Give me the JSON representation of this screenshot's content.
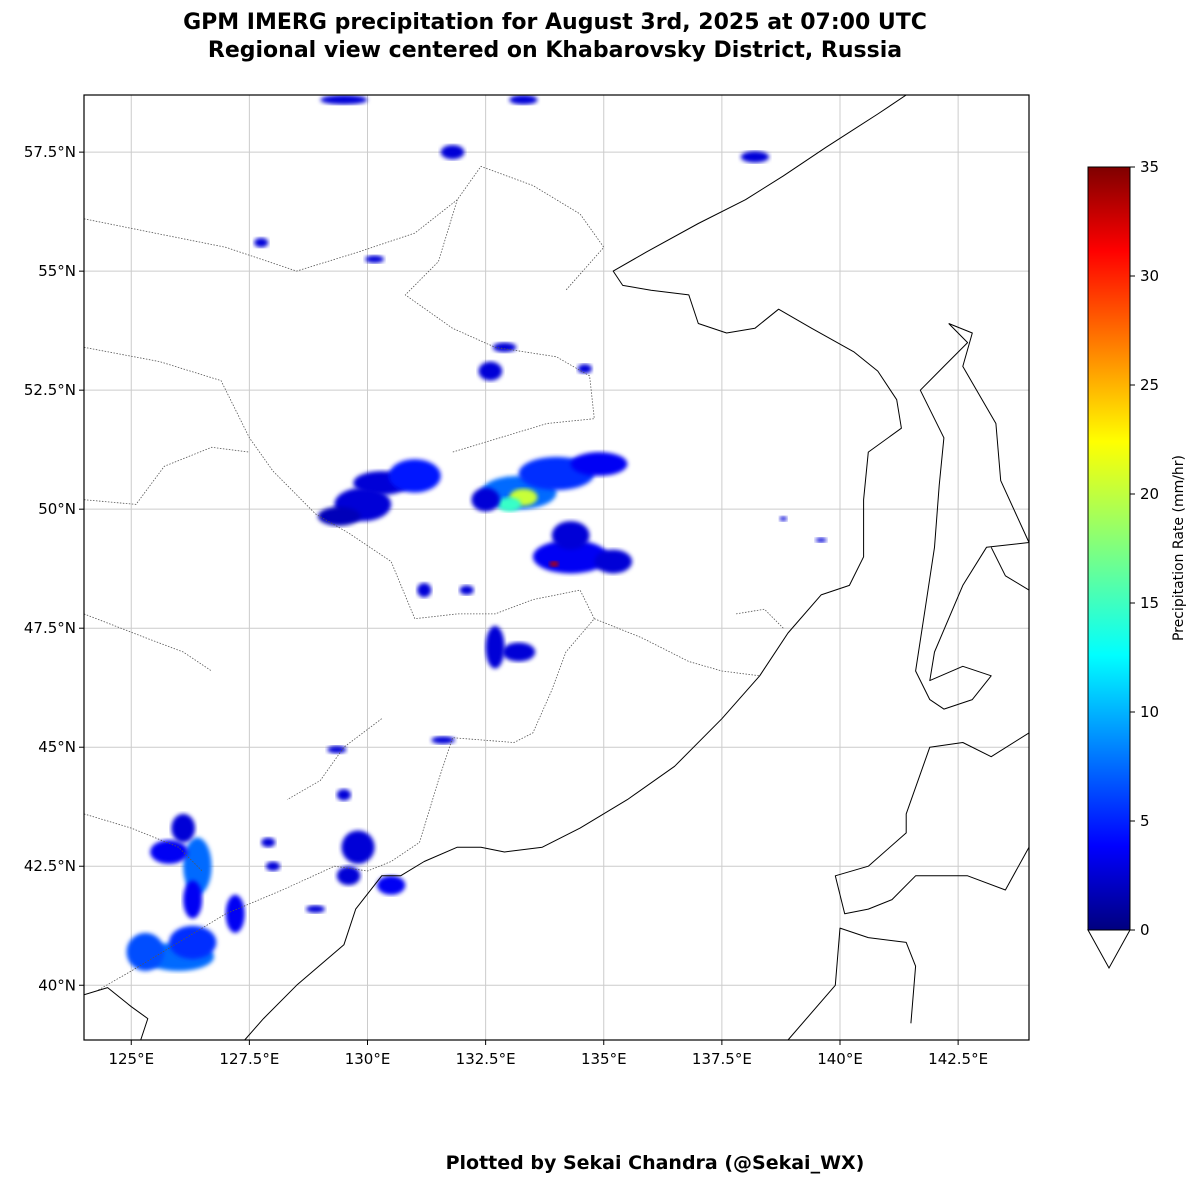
{
  "title_line1": "GPM IMERG precipitation for August 3rd, 2025 at 07:00 UTC",
  "title_line2": "Regional view centered on Khabarovsky District, Russia",
  "credit": "Plotted by Sekai Chandra (@Sekai_WX)",
  "map": {
    "lon_range": [
      124.0,
      144.0
    ],
    "lat_range": [
      38.85,
      58.7
    ],
    "lon_ticks": [
      125.0,
      127.5,
      130.0,
      132.5,
      135.0,
      137.5,
      140.0,
      142.5
    ],
    "lon_tick_labels": [
      "125°E",
      "127.5°E",
      "130°E",
      "132.5°E",
      "135°E",
      "137.5°E",
      "140°E",
      "142.5°E"
    ],
    "lat_ticks": [
      40.0,
      42.5,
      45.0,
      47.5,
      50.0,
      52.5,
      55.0,
      57.5
    ],
    "lat_tick_labels": [
      "40°N",
      "42.5°N",
      "45°N",
      "47.5°N",
      "50°N",
      "52.5°N",
      "55°N",
      "57.5°N"
    ],
    "gridlines": true,
    "colors": {
      "grid": "#cccccc",
      "coast": "#000000",
      "border": "#555555"
    }
  },
  "colorbar": {
    "label": "Precipitation Rate (mm/hr)",
    "ticks": [
      "0",
      "5",
      "10",
      "15",
      "20",
      "25",
      "30",
      "35"
    ],
    "min": 0,
    "max": 35,
    "colormap": "jet",
    "extend": "min"
  },
  "precip_cells": [
    {
      "lon": 129.9,
      "lat": 50.1,
      "rx": 0.6,
      "ry": 0.35,
      "rate": 3
    },
    {
      "lon": 130.3,
      "lat": 50.55,
      "rx": 0.6,
      "ry": 0.25,
      "rate": 3
    },
    {
      "lon": 131.0,
      "lat": 50.7,
      "rx": 0.55,
      "ry": 0.35,
      "rate": 5
    },
    {
      "lon": 129.4,
      "lat": 49.85,
      "rx": 0.45,
      "ry": 0.2,
      "rate": 2
    },
    {
      "lon": 133.2,
      "lat": 50.35,
      "rx": 0.8,
      "ry": 0.35,
      "rate": 8
    },
    {
      "lon": 134.0,
      "lat": 50.75,
      "rx": 0.8,
      "ry": 0.35,
      "rate": 6
    },
    {
      "lon": 133.3,
      "lat": 50.25,
      "rx": 0.3,
      "ry": 0.18,
      "rate": 20
    },
    {
      "lon": 133.0,
      "lat": 50.1,
      "rx": 0.25,
      "ry": 0.15,
      "rate": 15
    },
    {
      "lon": 134.9,
      "lat": 50.95,
      "rx": 0.6,
      "ry": 0.25,
      "rate": 4
    },
    {
      "lon": 132.5,
      "lat": 50.2,
      "rx": 0.3,
      "ry": 0.25,
      "rate": 3
    },
    {
      "lon": 134.3,
      "lat": 49.0,
      "rx": 0.8,
      "ry": 0.35,
      "rate": 4
    },
    {
      "lon": 134.3,
      "lat": 49.45,
      "rx": 0.4,
      "ry": 0.3,
      "rate": 3
    },
    {
      "lon": 135.2,
      "lat": 48.9,
      "rx": 0.4,
      "ry": 0.25,
      "rate": 3
    },
    {
      "lon": 133.95,
      "lat": 48.85,
      "rx": 0.1,
      "ry": 0.06,
      "rate": 33
    },
    {
      "lon": 132.7,
      "lat": 47.1,
      "rx": 0.2,
      "ry": 0.45,
      "rate": 3
    },
    {
      "lon": 133.2,
      "lat": 47.0,
      "rx": 0.35,
      "ry": 0.2,
      "rate": 3
    },
    {
      "lon": 131.2,
      "lat": 48.3,
      "rx": 0.15,
      "ry": 0.15,
      "rate": 3
    },
    {
      "lon": 132.1,
      "lat": 48.3,
      "rx": 0.15,
      "ry": 0.1,
      "rate": 3
    },
    {
      "lon": 132.9,
      "lat": 53.4,
      "rx": 0.25,
      "ry": 0.1,
      "rate": 3
    },
    {
      "lon": 132.6,
      "lat": 52.9,
      "rx": 0.25,
      "ry": 0.2,
      "rate": 3
    },
    {
      "lon": 134.6,
      "lat": 52.95,
      "rx": 0.15,
      "ry": 0.1,
      "rate": 3
    },
    {
      "lon": 129.5,
      "lat": 58.6,
      "rx": 0.5,
      "ry": 0.1,
      "rate": 3
    },
    {
      "lon": 131.8,
      "lat": 57.5,
      "rx": 0.25,
      "ry": 0.15,
      "rate": 3
    },
    {
      "lon": 133.3,
      "lat": 58.6,
      "rx": 0.3,
      "ry": 0.1,
      "rate": 3
    },
    {
      "lon": 138.2,
      "lat": 57.4,
      "rx": 0.3,
      "ry": 0.12,
      "rate": 3
    },
    {
      "lon": 127.75,
      "lat": 55.6,
      "rx": 0.15,
      "ry": 0.1,
      "rate": 3
    },
    {
      "lon": 130.15,
      "lat": 55.25,
      "rx": 0.2,
      "ry": 0.08,
      "rate": 3
    },
    {
      "lon": 126.0,
      "lat": 40.6,
      "rx": 0.75,
      "ry": 0.3,
      "rate": 8
    },
    {
      "lon": 125.3,
      "lat": 40.7,
      "rx": 0.4,
      "ry": 0.4,
      "rate": 7
    },
    {
      "lon": 126.3,
      "lat": 40.9,
      "rx": 0.5,
      "ry": 0.35,
      "rate": 6
    },
    {
      "lon": 126.4,
      "lat": 42.5,
      "rx": 0.3,
      "ry": 0.6,
      "rate": 8
    },
    {
      "lon": 126.3,
      "lat": 41.8,
      "rx": 0.2,
      "ry": 0.4,
      "rate": 4
    },
    {
      "lon": 125.8,
      "lat": 42.8,
      "rx": 0.4,
      "ry": 0.25,
      "rate": 4
    },
    {
      "lon": 126.1,
      "lat": 43.3,
      "rx": 0.25,
      "ry": 0.3,
      "rate": 3
    },
    {
      "lon": 127.2,
      "lat": 41.5,
      "rx": 0.2,
      "ry": 0.4,
      "rate": 4
    },
    {
      "lon": 129.8,
      "lat": 42.9,
      "rx": 0.35,
      "ry": 0.35,
      "rate": 3
    },
    {
      "lon": 129.6,
      "lat": 42.3,
      "rx": 0.25,
      "ry": 0.2,
      "rate": 3
    },
    {
      "lon": 130.5,
      "lat": 42.1,
      "rx": 0.3,
      "ry": 0.2,
      "rate": 4
    },
    {
      "lon": 129.35,
      "lat": 44.95,
      "rx": 0.2,
      "ry": 0.08,
      "rate": 3
    },
    {
      "lon": 131.6,
      "lat": 45.15,
      "rx": 0.25,
      "ry": 0.08,
      "rate": 3
    },
    {
      "lon": 127.9,
      "lat": 43.0,
      "rx": 0.15,
      "ry": 0.1,
      "rate": 3
    },
    {
      "lon": 129.5,
      "lat": 44.0,
      "rx": 0.15,
      "ry": 0.12,
      "rate": 3
    },
    {
      "lon": 128.0,
      "lat": 42.5,
      "rx": 0.15,
      "ry": 0.1,
      "rate": 3
    },
    {
      "lon": 128.9,
      "lat": 41.6,
      "rx": 0.2,
      "ry": 0.08,
      "rate": 3
    },
    {
      "lon": 138.8,
      "lat": 49.8,
      "rx": 0.08,
      "ry": 0.05,
      "rate": 3
    },
    {
      "lon": 139.6,
      "lat": 49.35,
      "rx": 0.12,
      "ry": 0.05,
      "rate": 3
    }
  ],
  "coastlines": [
    [
      [
        124.0,
        39.8
      ],
      [
        124.5,
        39.95
      ],
      [
        125.0,
        39.55
      ],
      [
        125.35,
        39.3
      ],
      [
        125.2,
        38.85
      ]
    ],
    [
      [
        127.4,
        38.85
      ],
      [
        127.8,
        39.3
      ],
      [
        128.5,
        40.0
      ],
      [
        129.5,
        40.85
      ],
      [
        129.75,
        41.6
      ],
      [
        130.3,
        42.3
      ],
      [
        130.7,
        42.3
      ],
      [
        131.2,
        42.6
      ],
      [
        131.9,
        42.9
      ],
      [
        132.4,
        42.9
      ],
      [
        132.9,
        42.8
      ],
      [
        133.7,
        42.9
      ],
      [
        134.5,
        43.3
      ],
      [
        135.5,
        43.9
      ],
      [
        136.5,
        44.6
      ],
      [
        137.5,
        45.6
      ],
      [
        138.3,
        46.5
      ],
      [
        138.9,
        47.4
      ],
      [
        139.6,
        48.2
      ],
      [
        140.2,
        48.4
      ],
      [
        140.5,
        49.0
      ],
      [
        140.5,
        50.2
      ],
      [
        140.6,
        51.2
      ],
      [
        141.3,
        51.7
      ],
      [
        141.2,
        52.3
      ],
      [
        140.8,
        52.9
      ],
      [
        140.3,
        53.3
      ],
      [
        139.4,
        53.8
      ],
      [
        138.7,
        54.2
      ],
      [
        138.2,
        53.8
      ],
      [
        137.6,
        53.7
      ],
      [
        137.0,
        53.9
      ],
      [
        136.8,
        54.5
      ],
      [
        136.0,
        54.6
      ],
      [
        135.4,
        54.7
      ],
      [
        135.2,
        55.0
      ],
      [
        135.9,
        55.4
      ],
      [
        137.0,
        56.0
      ],
      [
        138.0,
        56.5
      ],
      [
        138.8,
        57.0
      ],
      [
        139.7,
        57.6
      ],
      [
        140.8,
        58.3
      ],
      [
        141.4,
        58.7
      ]
    ],
    [
      [
        142.3,
        53.9
      ],
      [
        142.8,
        53.7
      ],
      [
        142.6,
        53.0
      ],
      [
        143.3,
        51.8
      ],
      [
        143.4,
        50.6
      ],
      [
        144.0,
        49.3
      ],
      [
        143.1,
        49.2
      ],
      [
        142.6,
        48.4
      ],
      [
        142.0,
        47.0
      ],
      [
        141.9,
        46.4
      ],
      [
        142.6,
        46.7
      ],
      [
        143.2,
        46.5
      ],
      [
        142.8,
        46.0
      ],
      [
        142.2,
        45.8
      ],
      [
        141.9,
        46.0
      ],
      [
        141.6,
        46.6
      ],
      [
        141.8,
        47.9
      ],
      [
        142.0,
        49.2
      ],
      [
        142.1,
        50.5
      ],
      [
        142.2,
        51.5
      ],
      [
        141.7,
        52.5
      ],
      [
        142.2,
        53.0
      ],
      [
        142.7,
        53.5
      ],
      [
        142.3,
        53.9
      ]
    ],
    [
      [
        144.0,
        45.3
      ],
      [
        143.2,
        44.8
      ],
      [
        142.6,
        45.1
      ],
      [
        141.9,
        45.0
      ],
      [
        141.4,
        43.6
      ],
      [
        141.4,
        43.2
      ],
      [
        140.6,
        42.5
      ],
      [
        139.9,
        42.3
      ],
      [
        140.1,
        41.5
      ],
      [
        140.6,
        41.6
      ],
      [
        141.1,
        41.8
      ],
      [
        141.6,
        42.3
      ],
      [
        142.7,
        42.3
      ],
      [
        143.5,
        42.0
      ],
      [
        144.0,
        42.9
      ]
    ],
    [
      [
        144.0,
        48.3
      ],
      [
        143.5,
        48.6
      ],
      [
        143.2,
        49.2
      ]
    ],
    [
      [
        138.9,
        38.85
      ],
      [
        139.9,
        40.0
      ],
      [
        140.0,
        41.2
      ],
      [
        140.6,
        41.0
      ],
      [
        141.4,
        40.9
      ],
      [
        141.6,
        40.4
      ],
      [
        141.5,
        39.2
      ]
    ]
  ],
  "borders": [
    [
      [
        124.0,
        53.4
      ],
      [
        125.6,
        53.1
      ],
      [
        126.9,
        52.7
      ],
      [
        127.5,
        51.5
      ],
      [
        128.0,
        50.8
      ],
      [
        128.9,
        49.9
      ],
      [
        129.6,
        49.5
      ],
      [
        130.5,
        48.9
      ],
      [
        131.0,
        47.7
      ],
      [
        131.9,
        47.8
      ],
      [
        132.7,
        47.8
      ],
      [
        133.5,
        48.1
      ],
      [
        134.0,
        48.2
      ],
      [
        134.5,
        48.3
      ],
      [
        134.8,
        47.7
      ],
      [
        134.2,
        47.0
      ],
      [
        133.9,
        46.2
      ],
      [
        133.5,
        45.3
      ],
      [
        133.1,
        45.1
      ],
      [
        131.8,
        45.2
      ],
      [
        131.5,
        44.3
      ],
      [
        131.1,
        43.0
      ],
      [
        130.5,
        42.6
      ],
      [
        130.0,
        42.4
      ],
      [
        129.3,
        42.5
      ],
      [
        128.2,
        42.0
      ],
      [
        127.0,
        41.5
      ],
      [
        126.0,
        40.9
      ],
      [
        125.0,
        40.3
      ],
      [
        124.3,
        39.9
      ]
    ],
    [
      [
        124.0,
        56.1
      ],
      [
        125.5,
        55.8
      ],
      [
        127.0,
        55.5
      ],
      [
        128.5,
        55.0
      ],
      [
        129.8,
        55.4
      ],
      [
        131.0,
        55.8
      ],
      [
        131.9,
        56.5
      ],
      [
        132.4,
        57.2
      ],
      [
        133.5,
        56.8
      ],
      [
        134.5,
        56.2
      ],
      [
        135.0,
        55.5
      ],
      [
        134.2,
        54.6
      ]
    ],
    [
      [
        131.9,
        56.5
      ],
      [
        131.5,
        55.2
      ],
      [
        130.8,
        54.5
      ],
      [
        131.8,
        53.8
      ],
      [
        132.7,
        53.4
      ],
      [
        134.0,
        53.2
      ],
      [
        134.7,
        52.8
      ],
      [
        134.8,
        51.9
      ],
      [
        133.8,
        51.8
      ],
      [
        132.8,
        51.5
      ],
      [
        131.8,
        51.2
      ]
    ],
    [
      [
        124.0,
        50.2
      ],
      [
        125.1,
        50.1
      ],
      [
        125.7,
        50.9
      ],
      [
        126.7,
        51.3
      ],
      [
        127.5,
        51.2
      ]
    ],
    [
      [
        124.0,
        47.8
      ],
      [
        125.3,
        47.3
      ],
      [
        126.1,
        47.0
      ],
      [
        126.7,
        46.6
      ]
    ],
    [
      [
        124.0,
        43.6
      ],
      [
        125.0,
        43.3
      ],
      [
        126.0,
        42.9
      ],
      [
        126.5,
        42.4
      ]
    ],
    [
      [
        130.3,
        45.6
      ],
      [
        129.5,
        45.0
      ],
      [
        129.0,
        44.3
      ],
      [
        128.3,
        43.9
      ]
    ],
    [
      [
        134.8,
        47.7
      ],
      [
        135.8,
        47.3
      ],
      [
        136.8,
        46.8
      ],
      [
        137.5,
        46.6
      ],
      [
        138.3,
        46.5
      ]
    ],
    [
      [
        137.8,
        47.8
      ],
      [
        138.4,
        47.9
      ],
      [
        138.8,
        47.5
      ]
    ]
  ]
}
